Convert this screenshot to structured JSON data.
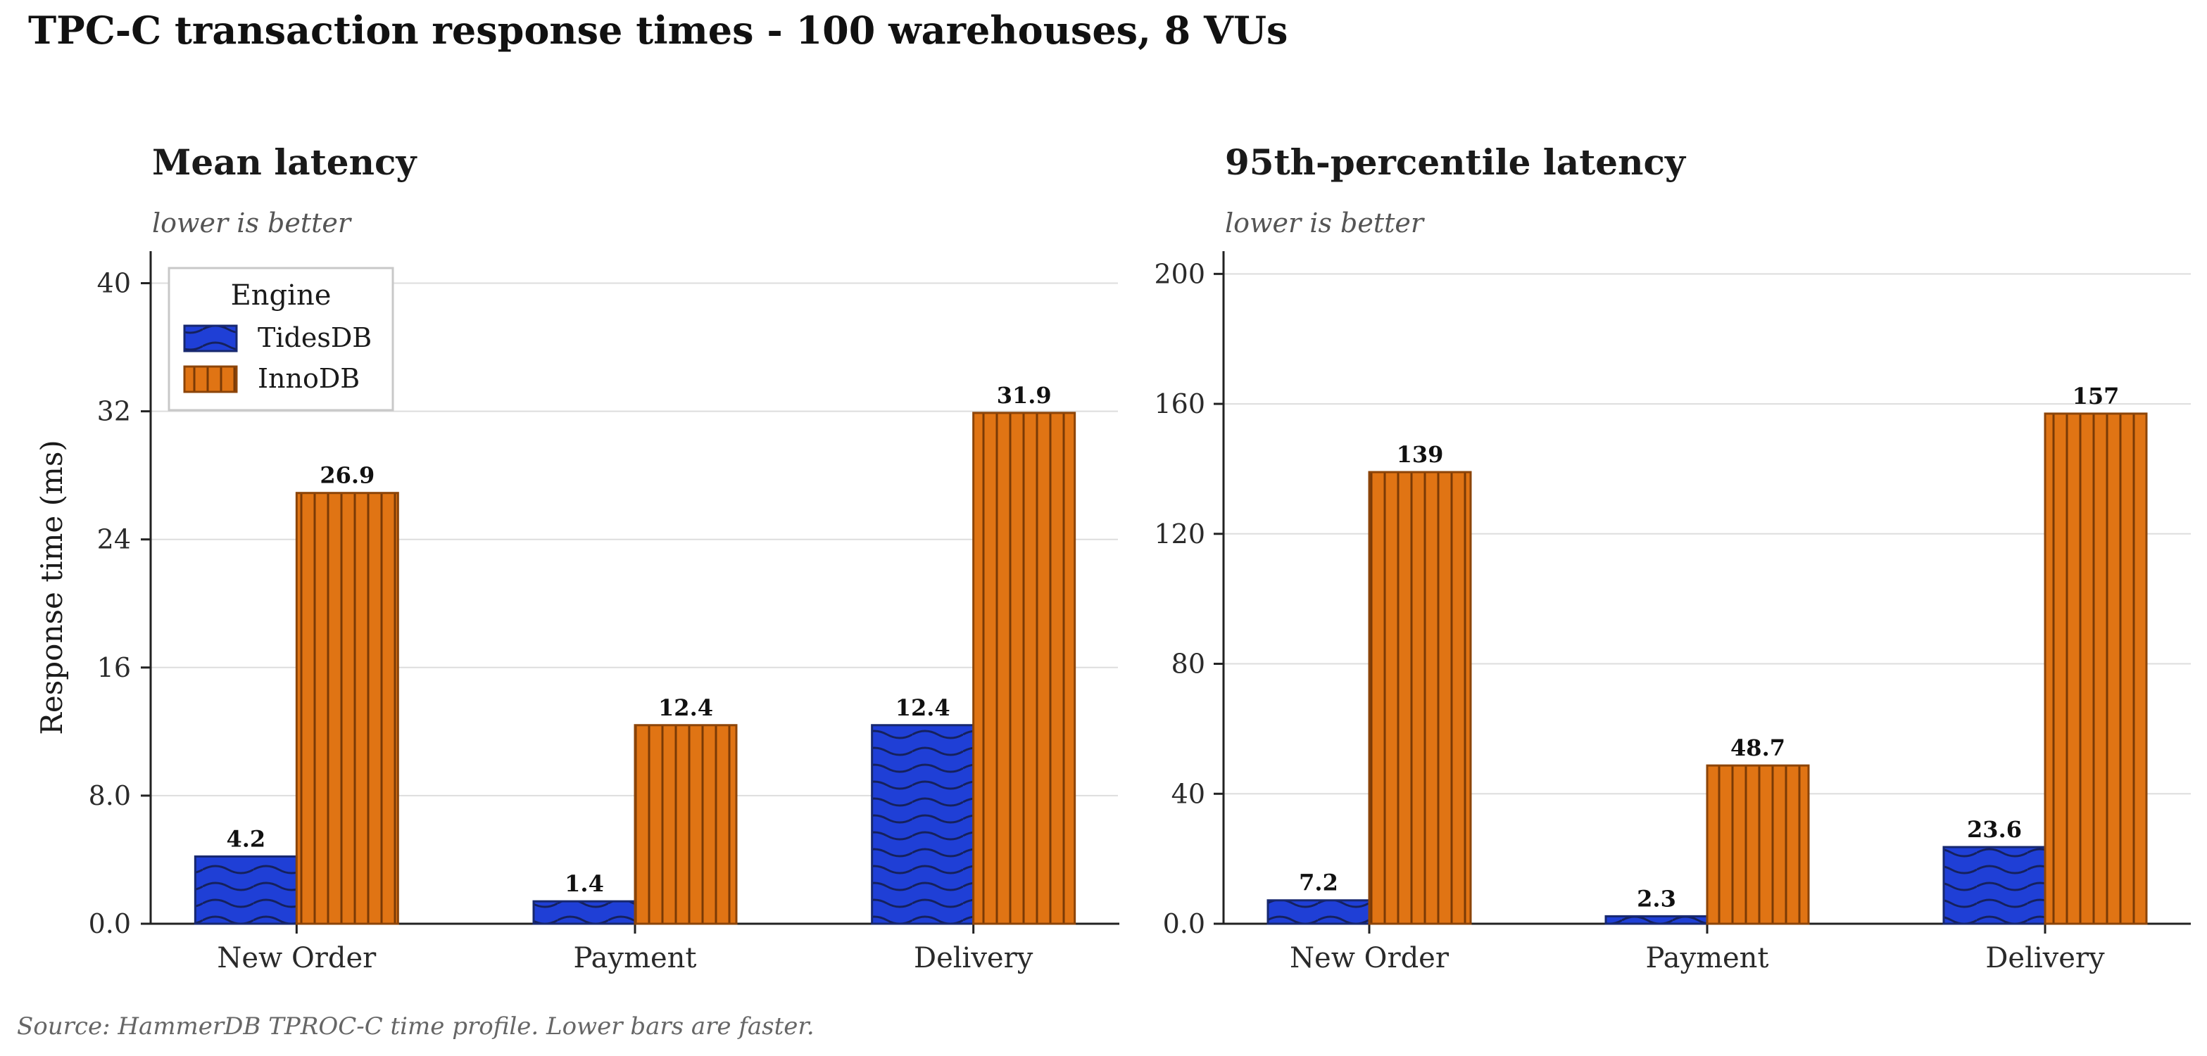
{
  "title": "TPC-C transaction response times  -  100 warehouses, 8 VUs",
  "footer": "Source: HammerDB TPROC-C time profile.  Lower bars are faster.",
  "colors": {
    "tidesdb": "#1f3fd6",
    "tidesdb_edge": "#17286f",
    "innodb": "#e07414",
    "innodb_edge": "#8c4408",
    "grid": "#dddddd",
    "axis": "#222222"
  },
  "legend": {
    "title": "Engine",
    "placement": "upper-left (left panel)",
    "items": [
      {
        "label": "TidesDB",
        "color": "#1f3fd6",
        "hatch": "wavy"
      },
      {
        "label": "InnoDB",
        "color": "#e07414",
        "hatch": "vertical"
      }
    ]
  },
  "chart_data": [
    {
      "type": "bar",
      "title": "Mean latency",
      "subtitle": "lower is better",
      "xlabel": "",
      "ylabel": "Response time (ms)",
      "categories": [
        "New Order",
        "Payment",
        "Delivery"
      ],
      "ylim": [
        0,
        42
      ],
      "yticks": [
        0,
        8,
        16,
        24,
        32,
        40
      ],
      "ytick_labels": [
        "0.0",
        "8.0",
        "16",
        "24",
        "32",
        "40"
      ],
      "grid": true,
      "series": [
        {
          "name": "TidesDB",
          "values": [
            4.2,
            1.4,
            12.4
          ],
          "labels": [
            "4.2",
            "1.4",
            "12.4"
          ]
        },
        {
          "name": "InnoDB",
          "values": [
            26.9,
            12.4,
            31.9
          ],
          "labels": [
            "26.9",
            "12.4",
            "31.9"
          ]
        }
      ]
    },
    {
      "type": "bar",
      "title": "95th-percentile latency",
      "subtitle": "lower is better",
      "xlabel": "",
      "ylabel": "",
      "categories": [
        "New Order",
        "Payment",
        "Delivery"
      ],
      "ylim": [
        0,
        207
      ],
      "yticks": [
        0,
        40,
        80,
        120,
        160,
        200
      ],
      "ytick_labels": [
        "0.0",
        "40",
        "80",
        "120",
        "160",
        "200"
      ],
      "grid": true,
      "series": [
        {
          "name": "TidesDB",
          "values": [
            7.2,
            2.3,
            23.6
          ],
          "labels": [
            "7.2",
            "2.3",
            "23.6"
          ]
        },
        {
          "name": "InnoDB",
          "values": [
            139,
            48.7,
            157
          ],
          "labels": [
            "139",
            "48.7",
            "157"
          ]
        }
      ]
    }
  ]
}
